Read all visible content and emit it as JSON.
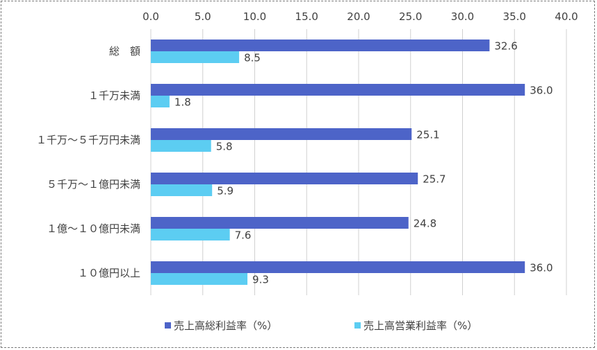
{
  "chart_data": {
    "type": "bar",
    "orientation": "horizontal",
    "categories": [
      "総　額",
      "１千万未満",
      "１千万～５千万円未満",
      "５千万～１億円未満",
      "１億～１０億円未満",
      "１０億円以上"
    ],
    "series": [
      {
        "name": "売上高総利益率（%）",
        "values": [
          32.6,
          36.0,
          25.1,
          25.7,
          24.8,
          36.0
        ],
        "labels": [
          "32.6",
          "36.0",
          "25.1",
          "25.7",
          "24.8",
          "36.0"
        ],
        "color": "#4d64c8"
      },
      {
        "name": "売上高営業利益率（%）",
        "values": [
          8.5,
          1.8,
          5.8,
          5.9,
          7.6,
          9.3
        ],
        "labels": [
          "8.5",
          "1.8",
          "5.8",
          "5.9",
          "7.6",
          "9.3"
        ],
        "color": "#5ccdf2"
      }
    ],
    "xlim": [
      0,
      40
    ],
    "x_ticks": [
      "0.0",
      "5.0",
      "10.0",
      "15.0",
      "20.0",
      "25.0",
      "30.0",
      "35.0",
      "40.0"
    ],
    "x_tick_values": [
      0,
      5,
      10,
      15,
      20,
      25,
      30,
      35,
      40
    ],
    "x_axis_position": "top",
    "grid": true,
    "legend_position": "bottom",
    "title": "",
    "xlabel": "",
    "ylabel": "",
    "gridline_color": "#d0d0d0"
  }
}
